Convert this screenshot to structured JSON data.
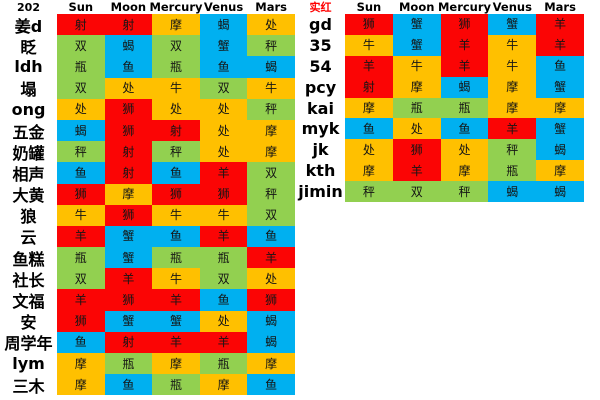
{
  "element_colors": {
    "fire": "#fb0505",
    "earth": "#ffc000",
    "air": "#92d050",
    "water": "#00b0f0"
  },
  "sign_elements": {
    "羊": "fire",
    "狮": "fire",
    "射": "fire",
    "牛": "earth",
    "处": "earth",
    "摩": "earth",
    "双": "air",
    "秤": "air",
    "瓶": "air",
    "蟹": "water",
    "蝎": "water",
    "鱼": "water"
  },
  "columns": [
    "Sun",
    "Moon",
    "Mercury",
    "Venus",
    "Mars"
  ],
  "left_table": {
    "corner_label": "202",
    "corner_color": "#000000",
    "rows": [
      {
        "label": "姜d",
        "cells": [
          "射",
          "射",
          "摩",
          "蝎",
          "处"
        ]
      },
      {
        "label": "眨",
        "cells": [
          "双",
          "蝎",
          "双",
          "蟹",
          "秤"
        ]
      },
      {
        "label": "ldh",
        "cells": [
          "瓶",
          "鱼",
          "瓶",
          "鱼",
          "蝎"
        ]
      },
      {
        "label": "塌",
        "cells": [
          "双",
          "处",
          "牛",
          "双",
          "牛"
        ]
      },
      {
        "label": "ong",
        "cells": [
          "处",
          "狮",
          "处",
          "处",
          "秤"
        ]
      },
      {
        "label": "五金",
        "cells": [
          "蝎",
          "狮",
          "射",
          "处",
          "摩"
        ]
      },
      {
        "label": "奶罐",
        "cells": [
          "秤",
          "射",
          "秤",
          "处",
          "摩"
        ]
      },
      {
        "label": "相声",
        "cells": [
          "鱼",
          "射",
          "鱼",
          "羊",
          "双"
        ]
      },
      {
        "label": "大黄",
        "cells": [
          "狮",
          "摩",
          "狮",
          "狮",
          "秤"
        ]
      },
      {
        "label": "狼",
        "cells": [
          "牛",
          "狮",
          "牛",
          "牛",
          "双"
        ]
      },
      {
        "label": "云",
        "cells": [
          "羊",
          "蟹",
          "鱼",
          "羊",
          "鱼"
        ]
      },
      {
        "label": "鱼糕",
        "cells": [
          "瓶",
          "蟹",
          "瓶",
          "瓶",
          "羊"
        ]
      },
      {
        "label": "社长",
        "cells": [
          "双",
          "羊",
          "牛",
          "双",
          "处"
        ]
      },
      {
        "label": "文福",
        "cells": [
          "羊",
          "狮",
          "羊",
          "鱼",
          "狮"
        ]
      },
      {
        "label": "安",
        "cells": [
          "狮",
          "蟹",
          "蟹",
          "处",
          "蝎"
        ]
      },
      {
        "label": "周学年",
        "cells": [
          "鱼",
          "射",
          "羊",
          "羊",
          "蝎"
        ]
      },
      {
        "label": "lym",
        "cells": [
          "摩",
          "瓶",
          "摩",
          "瓶",
          "摩"
        ]
      },
      {
        "label": "三木",
        "cells": [
          "摩",
          "鱼",
          "瓶",
          "摩",
          "鱼"
        ]
      }
    ]
  },
  "right_table": {
    "corner_label": "实红",
    "corner_color": "#ff0000",
    "rows": [
      {
        "label": "gd",
        "cells": [
          "狮",
          "蟹",
          "狮",
          "蟹",
          "羊"
        ]
      },
      {
        "label": "35",
        "cells": [
          "牛",
          "蟹",
          "羊",
          "牛",
          "羊"
        ]
      },
      {
        "label": "54",
        "cells": [
          "羊",
          "牛",
          "羊",
          "牛",
          "鱼"
        ]
      },
      {
        "label": "pcy",
        "cells": [
          "射",
          "摩",
          "蝎",
          "摩",
          "蟹"
        ]
      },
      {
        "label": "kai",
        "cells": [
          "摩",
          "瓶",
          "瓶",
          "摩",
          "摩"
        ]
      },
      {
        "label": "myk",
        "cells": [
          "鱼",
          "处",
          "鱼",
          "羊",
          "蟹"
        ]
      },
      {
        "label": "jk",
        "cells": [
          "处",
          "狮",
          "处",
          "秤",
          "蝎"
        ]
      },
      {
        "label": "kth",
        "cells": [
          "摩",
          "羊",
          "摩",
          "瓶",
          "摩"
        ]
      },
      {
        "label": "jimin",
        "cells": [
          "秤",
          "双",
          "秤",
          "蝎",
          "蝎"
        ]
      }
    ]
  }
}
